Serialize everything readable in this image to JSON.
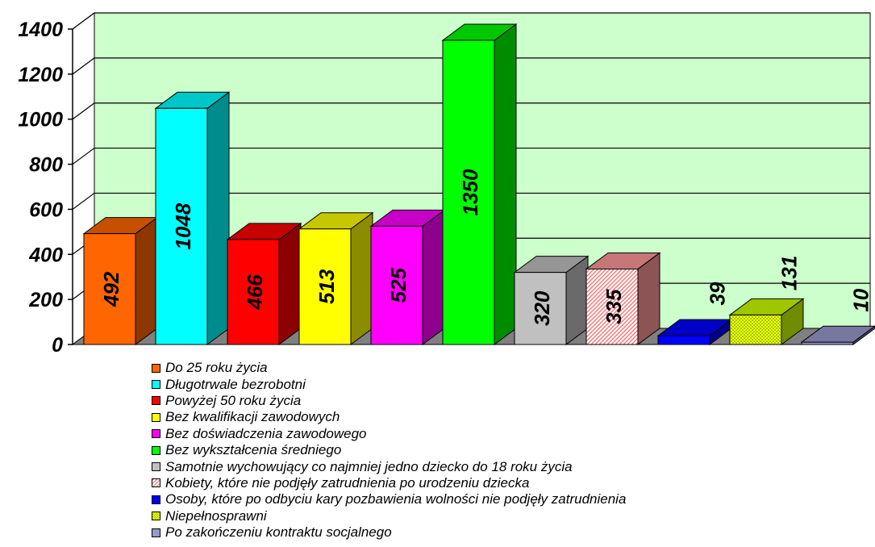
{
  "chart_data": {
    "type": "bar",
    "title": "",
    "xlabel": "",
    "ylabel": "",
    "ylim": [
      0,
      1400
    ],
    "y_ticks": [
      "0",
      "200",
      "400",
      "600",
      "800",
      "1000",
      "1200",
      "1400"
    ],
    "grid": true,
    "style": "3d",
    "plot_background": "#ccffcc",
    "legend_position": "bottom",
    "categories": [
      "Do 25 roku życia",
      "Długotrwale bezrobotni",
      "Powyżej 50 roku życia",
      "Bez kwalifikacji zawodowych",
      "Bez doświadczenia zawodowego",
      "Bez wykształcenia średniego",
      "Samotnie wychowujący co najmniej jedno dziecko do 18 roku życia",
      "Kobiety, które nie podjęły zatrudnienia po urodzeniu dziecka",
      "Osoby, które po odbyciu kary pozbawienia wolności nie podjęły zatrudnienia",
      "Niepełnosprawni",
      "Po zakończeniu kontraktu socjalnego"
    ],
    "values": [
      492,
      1048,
      466,
      513,
      525,
      1350,
      320,
      335,
      39,
      131,
      10
    ],
    "data_labels": [
      "492",
      "1048",
      "466",
      "513",
      "525",
      "1350",
      "320",
      "335",
      "39",
      "131",
      "10"
    ],
    "colors": [
      "#ff6600",
      "#00ffff",
      "#ff0000",
      "#ffff00",
      "#ff00ff",
      "#00ff00",
      "#c0c0c0",
      "#ff9999",
      "#0000ff",
      "#ccff00",
      "#9999cc"
    ],
    "patterns": [
      "solid",
      "solid",
      "solid",
      "solid",
      "solid",
      "solid",
      "solid",
      "hatch",
      "solid",
      "checker",
      "solid"
    ]
  }
}
